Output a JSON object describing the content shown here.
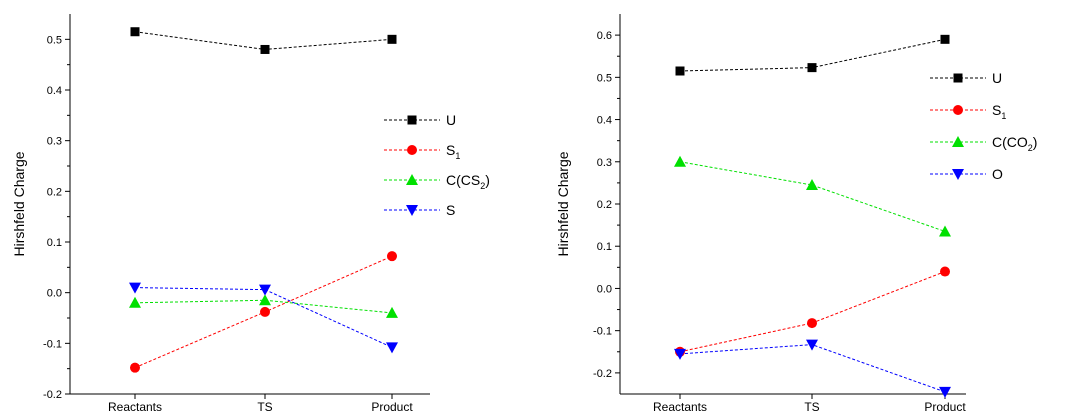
{
  "chart_data": [
    {
      "type": "line",
      "title": "",
      "xlabel": "",
      "ylabel": "Hirshfeld Charge",
      "categories": [
        "Reactants",
        "TS",
        "Product"
      ],
      "ylim": [
        -0.2,
        0.55
      ],
      "yticks": [
        "-0.2",
        "-0.1",
        "0.0",
        "0.1",
        "0.2",
        "0.3",
        "0.4",
        "0.5"
      ],
      "grid": false,
      "legend_position": "right",
      "series": [
        {
          "name": "U",
          "name_sub": "",
          "name_tail": "",
          "values": [
            0.515,
            0.48,
            0.5
          ],
          "color": "#000000",
          "marker": "square"
        },
        {
          "name": "S",
          "name_sub": "1",
          "name_tail": "",
          "values": [
            -0.148,
            -0.038,
            0.072
          ],
          "color": "#ff0000",
          "marker": "circle"
        },
        {
          "name": "C(CS",
          "name_sub": "2",
          "name_tail": ")",
          "values": [
            -0.02,
            -0.015,
            -0.04
          ],
          "color": "#00e000",
          "marker": "triangle-up"
        },
        {
          "name": "S",
          "name_sub": "",
          "name_tail": "",
          "values": [
            0.01,
            0.006,
            -0.108
          ],
          "color": "#0000ff",
          "marker": "triangle-down"
        }
      ]
    },
    {
      "type": "line",
      "title": "",
      "xlabel": "",
      "ylabel": "Hirshfeld Charge",
      "categories": [
        "Reactants",
        "TS",
        "Product"
      ],
      "ylim": [
        -0.25,
        0.65
      ],
      "yticks": [
        "-0.2",
        "-0.1",
        "0.0",
        "0.1",
        "0.2",
        "0.3",
        "0.4",
        "0.5",
        "0.6"
      ],
      "grid": false,
      "legend_position": "right",
      "series": [
        {
          "name": "U",
          "name_sub": "",
          "name_tail": "",
          "values": [
            0.515,
            0.523,
            0.59
          ],
          "color": "#000000",
          "marker": "square"
        },
        {
          "name": "S",
          "name_sub": "1",
          "name_tail": "",
          "values": [
            -0.15,
            -0.082,
            0.04
          ],
          "color": "#ff0000",
          "marker": "circle"
        },
        {
          "name": "C(CO",
          "name_sub": "2",
          "name_tail": ")",
          "values": [
            0.3,
            0.245,
            0.135
          ],
          "color": "#00e000",
          "marker": "triangle-up"
        },
        {
          "name": "O",
          "name_sub": "",
          "name_tail": "",
          "values": [
            -0.155,
            -0.133,
            -0.245
          ],
          "color": "#0000ff",
          "marker": "triangle-down"
        }
      ]
    }
  ]
}
